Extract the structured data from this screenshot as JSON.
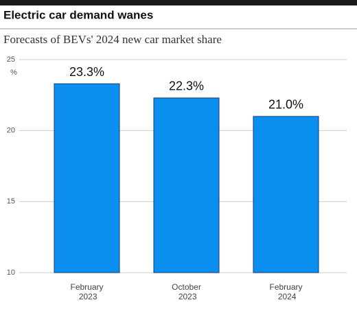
{
  "chart_data": {
    "type": "bar",
    "title": "Electric car demand wanes",
    "subtitle": "Forecasts of BEVs' 2024 new car market share",
    "y_unit": "%",
    "categories": [
      "February 2023",
      "October 2023",
      "February 2024"
    ],
    "values": [
      23.3,
      22.3,
      21.0
    ],
    "value_labels": [
      "23.3%",
      "22.3%",
      "21.0%"
    ],
    "color": "#0a8ff0",
    "ylim": [
      10,
      25
    ],
    "yticks": [
      10,
      15,
      20,
      25
    ],
    "grid": true
  }
}
